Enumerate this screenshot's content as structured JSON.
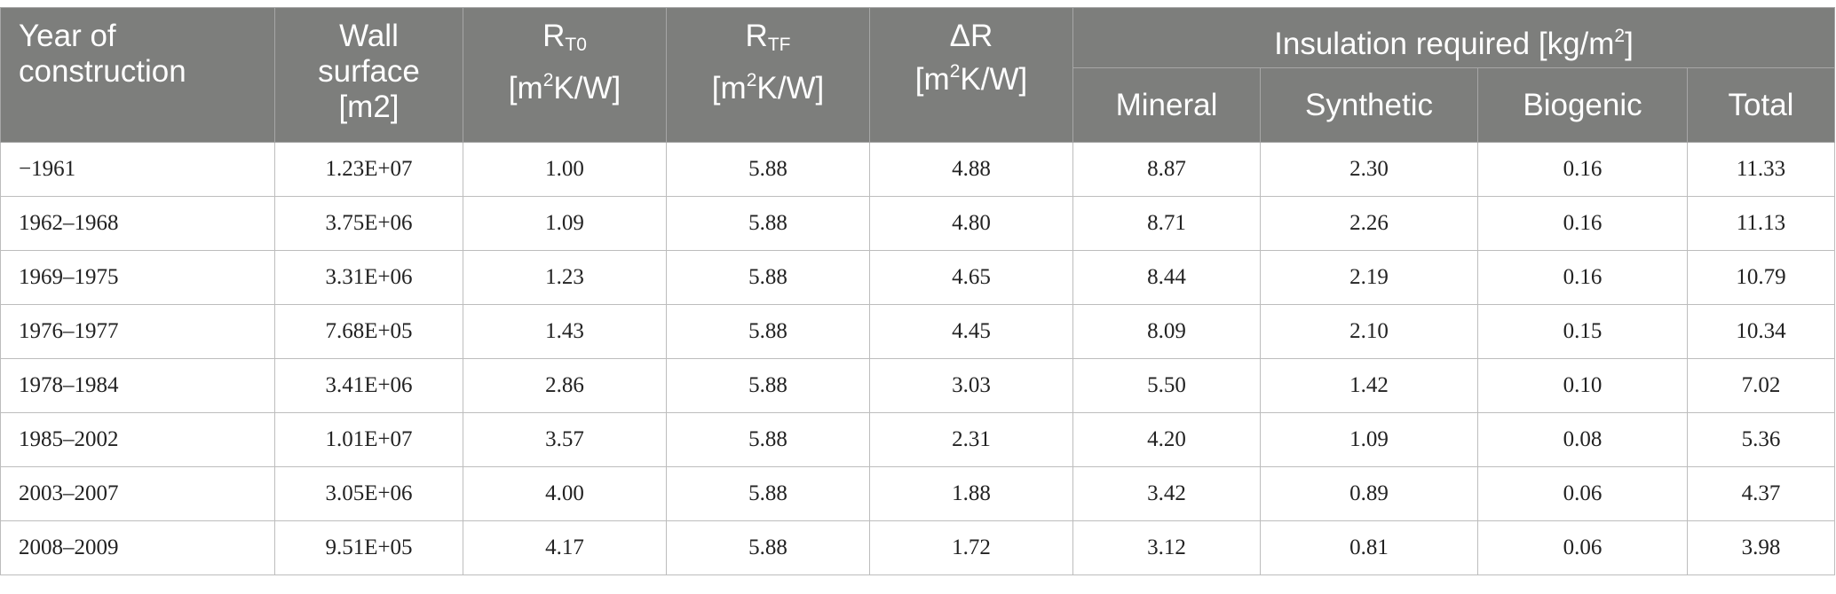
{
  "headers": {
    "year": "Year of construction",
    "wall": {
      "line1": "Wall",
      "line2": "surface",
      "line3": "[m2]"
    },
    "rt0": {
      "base": "R",
      "sub": "T0",
      "unit_open": "[m",
      "unit_exp": "2",
      "unit_close": "K/W]"
    },
    "rtf": {
      "base": "R",
      "sub": "TF",
      "unit_open": "[m",
      "unit_exp": "2",
      "unit_close": "K/W]"
    },
    "dr": {
      "base": "ΔR",
      "unit_open": "[m",
      "unit_exp": "2",
      "unit_close": "K/W]"
    },
    "insulation": {
      "text": "Insulation required [kg/m",
      "exp": "2",
      "close": "]"
    },
    "mineral": "Mineral",
    "synthetic": "Synthetic",
    "biogenic": "Biogenic",
    "total": "Total"
  },
  "rows": [
    {
      "year": "−1961",
      "wall": "1.23E+07",
      "rt0": "1.00",
      "rtf": "5.88",
      "dr": "4.88",
      "mineral": "8.87",
      "synthetic": "2.30",
      "biogenic": "0.16",
      "total": "11.33"
    },
    {
      "year": "1962–1968",
      "wall": "3.75E+06",
      "rt0": "1.09",
      "rtf": "5.88",
      "dr": "4.80",
      "mineral": "8.71",
      "synthetic": "2.26",
      "biogenic": "0.16",
      "total": "11.13"
    },
    {
      "year": "1969–1975",
      "wall": "3.31E+06",
      "rt0": "1.23",
      "rtf": "5.88",
      "dr": "4.65",
      "mineral": "8.44",
      "synthetic": "2.19",
      "biogenic": "0.16",
      "total": "10.79"
    },
    {
      "year": "1976–1977",
      "wall": "7.68E+05",
      "rt0": "1.43",
      "rtf": "5.88",
      "dr": "4.45",
      "mineral": "8.09",
      "synthetic": "2.10",
      "biogenic": "0.15",
      "total": "10.34"
    },
    {
      "year": "1978–1984",
      "wall": "3.41E+06",
      "rt0": "2.86",
      "rtf": "5.88",
      "dr": "3.03",
      "mineral": "5.50",
      "synthetic": "1.42",
      "biogenic": "0.10",
      "total": "7.02"
    },
    {
      "year": "1985–2002",
      "wall": "1.01E+07",
      "rt0": "3.57",
      "rtf": "5.88",
      "dr": "2.31",
      "mineral": "4.20",
      "synthetic": "1.09",
      "biogenic": "0.08",
      "total": "5.36"
    },
    {
      "year": "2003–2007",
      "wall": "3.05E+06",
      "rt0": "4.00",
      "rtf": "5.88",
      "dr": "1.88",
      "mineral": "3.42",
      "synthetic": "0.89",
      "biogenic": "0.06",
      "total": "4.37"
    },
    {
      "year": "2008–2009",
      "wall": "9.51E+05",
      "rt0": "4.17",
      "rtf": "5.88",
      "dr": "1.72",
      "mineral": "3.12",
      "synthetic": "0.81",
      "biogenic": "0.06",
      "total": "3.98"
    }
  ]
}
